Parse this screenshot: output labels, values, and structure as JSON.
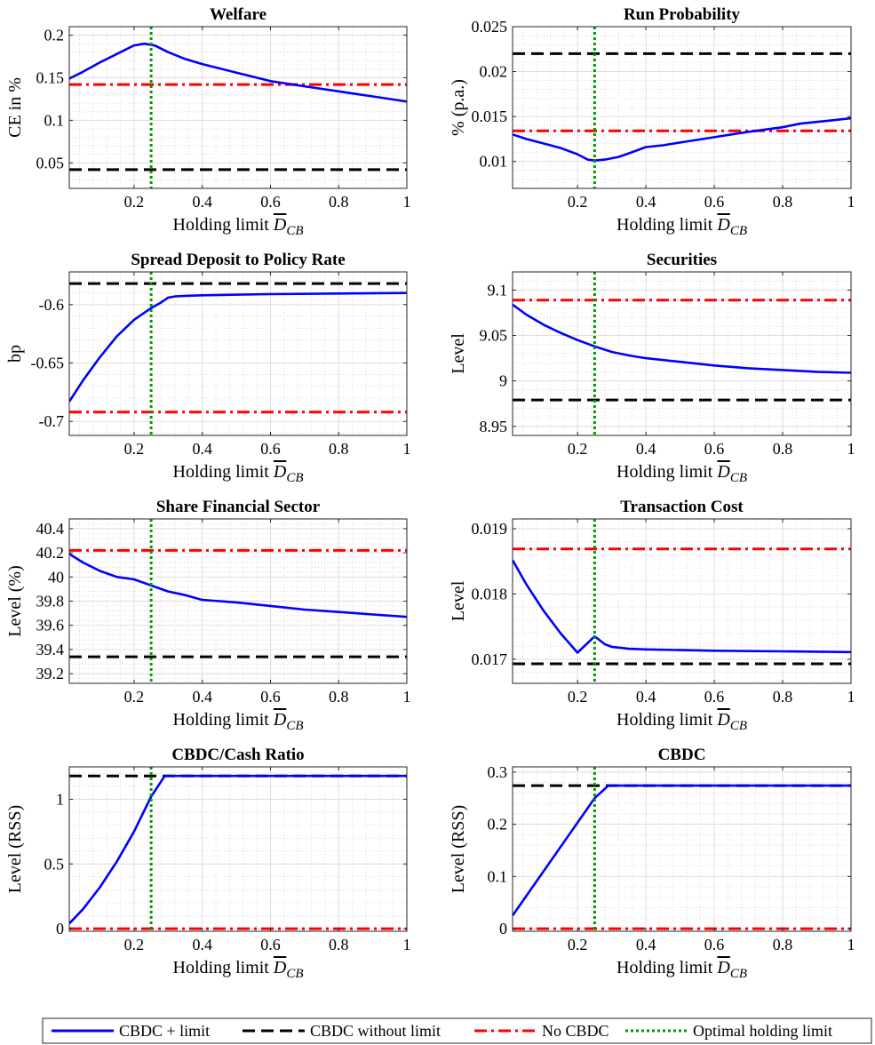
{
  "x_axis_label": {
    "prefix": "Holding limit ",
    "symbol": "D",
    "subscript": "CB"
  },
  "colors": {
    "cbdc_limit": "#0000ff",
    "cbdc_no_limit": "#000000",
    "no_cbdc": "#ff0000",
    "optimal": "#009900"
  },
  "legend": {
    "items": [
      {
        "key": "cbdc_limit",
        "label": "CBDC + limit",
        "style": "solid"
      },
      {
        "key": "cbdc_no_limit",
        "label": "CBDC without limit",
        "style": "dashed"
      },
      {
        "key": "no_cbdc",
        "label": "No CBDC",
        "style": "dashdot"
      },
      {
        "key": "optimal",
        "label": "Optimal holding limit",
        "style": "dotted"
      }
    ]
  },
  "chart_data": [
    {
      "type": "line",
      "title": "Welfare",
      "ylabel": "CE in %",
      "xlim": [
        0.01,
        1
      ],
      "ylim": [
        0.02,
        0.21
      ],
      "xticks": [
        0.2,
        0.4,
        0.6,
        0.8,
        1
      ],
      "xtick_labels": [
        "0.2",
        "0.4",
        "0.6",
        "0.8",
        "1"
      ],
      "yticks": [
        0.05,
        0.1,
        0.15,
        0.2
      ],
      "ytick_labels": [
        "0.05",
        "0.1",
        "0.15",
        "0.2"
      ],
      "series": [
        {
          "name": "CBDC + limit",
          "x": [
            0.01,
            0.05,
            0.1,
            0.15,
            0.2,
            0.23,
            0.26,
            0.3,
            0.35,
            0.4,
            0.5,
            0.6,
            0.7,
            0.8,
            0.85,
            0.9,
            0.95,
            1
          ],
          "y": [
            0.149,
            0.157,
            0.168,
            0.178,
            0.188,
            0.19,
            0.188,
            0.18,
            0.172,
            0.166,
            0.156,
            0.146,
            0.14,
            0.134,
            0.131,
            0.128,
            0.125,
            0.122
          ]
        }
      ],
      "hlines": {
        "cbdc_no_limit": 0.042,
        "no_cbdc": 0.142
      },
      "vline": 0.25
    },
    {
      "type": "line",
      "title": "Run Probability",
      "ylabel": "% (p.a.)",
      "xlim": [
        0.01,
        1
      ],
      "ylim": [
        0.007,
        0.025
      ],
      "xticks": [
        0.2,
        0.4,
        0.6,
        0.8,
        1
      ],
      "xtick_labels": [
        "0.2",
        "0.4",
        "0.6",
        "0.8",
        "1"
      ],
      "yticks": [
        0.01,
        0.015,
        0.02,
        0.025
      ],
      "ytick_labels": [
        "0.01",
        "0.015",
        "0.02",
        "0.025"
      ],
      "series": [
        {
          "name": "CBDC + limit",
          "x": [
            0.01,
            0.05,
            0.1,
            0.15,
            0.2,
            0.23,
            0.25,
            0.28,
            0.32,
            0.35,
            0.4,
            0.45,
            0.5,
            0.6,
            0.7,
            0.8,
            0.85,
            0.9,
            0.95,
            1
          ],
          "y": [
            0.013,
            0.0125,
            0.012,
            0.0115,
            0.0108,
            0.0102,
            0.0101,
            0.0102,
            0.0105,
            0.0109,
            0.0116,
            0.0118,
            0.0121,
            0.0127,
            0.0133,
            0.0138,
            0.0142,
            0.0144,
            0.0146,
            0.0148
          ]
        }
      ],
      "hlines": {
        "cbdc_no_limit": 0.022,
        "no_cbdc": 0.0134
      },
      "vline": 0.25
    },
    {
      "type": "line",
      "title": "Spread Deposit to Policy Rate",
      "ylabel": "bp",
      "xlim": [
        0.01,
        1
      ],
      "ylim": [
        -0.712,
        -0.572
      ],
      "xticks": [
        0.2,
        0.4,
        0.6,
        0.8,
        1
      ],
      "xtick_labels": [
        "0.2",
        "0.4",
        "0.6",
        "0.8",
        "1"
      ],
      "yticks": [
        -0.7,
        -0.65,
        -0.6
      ],
      "ytick_labels": [
        "-0.7",
        "-0.65",
        "-0.6"
      ],
      "series": [
        {
          "name": "CBDC + limit",
          "x": [
            0.01,
            0.05,
            0.1,
            0.15,
            0.2,
            0.25,
            0.28,
            0.3,
            0.32,
            0.35,
            0.4,
            0.6,
            0.8,
            1
          ],
          "y": [
            -0.683,
            -0.665,
            -0.645,
            -0.627,
            -0.613,
            -0.603,
            -0.598,
            -0.594,
            -0.593,
            -0.5925,
            -0.592,
            -0.591,
            -0.5905,
            -0.59
          ]
        }
      ],
      "hlines": {
        "cbdc_no_limit": -0.582,
        "no_cbdc": -0.692
      },
      "vline": 0.25
    },
    {
      "type": "line",
      "title": "Securities",
      "ylabel": "Level",
      "xlim": [
        0.01,
        1
      ],
      "ylim": [
        8.94,
        9.12
      ],
      "xticks": [
        0.2,
        0.4,
        0.6,
        0.8,
        1
      ],
      "xtick_labels": [
        "0.2",
        "0.4",
        "0.6",
        "0.8",
        "1"
      ],
      "yticks": [
        8.95,
        9,
        9.05,
        9.1
      ],
      "ytick_labels": [
        "8.95",
        "9",
        "9.05",
        "9.1"
      ],
      "series": [
        {
          "name": "CBDC + limit",
          "x": [
            0.01,
            0.05,
            0.1,
            0.15,
            0.2,
            0.25,
            0.3,
            0.35,
            0.4,
            0.5,
            0.6,
            0.7,
            0.8,
            0.9,
            1
          ],
          "y": [
            9.084,
            9.073,
            9.062,
            9.053,
            9.045,
            9.038,
            9.032,
            9.028,
            9.025,
            9.021,
            9.017,
            9.014,
            9.012,
            9.01,
            9.009
          ]
        }
      ],
      "hlines": {
        "cbdc_no_limit": 8.979,
        "no_cbdc": 9.089
      },
      "vline": 0.25
    },
    {
      "type": "line",
      "title": "Share Financial Sector",
      "ylabel": "Level (%)",
      "xlim": [
        0.01,
        1
      ],
      "ylim": [
        39.12,
        40.48
      ],
      "xticks": [
        0.2,
        0.4,
        0.6,
        0.8,
        1
      ],
      "xtick_labels": [
        "0.2",
        "0.4",
        "0.6",
        "0.8",
        "1"
      ],
      "yticks": [
        39.2,
        39.4,
        39.6,
        39.8,
        40,
        40.2,
        40.4
      ],
      "ytick_labels": [
        "39.2",
        "39.4",
        "39.6",
        "39.8",
        "40",
        "40.2",
        "40.4"
      ],
      "series": [
        {
          "name": "CBDC + limit",
          "x": [
            0.01,
            0.05,
            0.1,
            0.15,
            0.2,
            0.25,
            0.3,
            0.35,
            0.4,
            0.45,
            0.5,
            0.6,
            0.7,
            0.8,
            0.85,
            0.9,
            1
          ],
          "y": [
            40.19,
            40.12,
            40.05,
            40.0,
            39.98,
            39.93,
            39.88,
            39.85,
            39.81,
            39.8,
            39.79,
            39.76,
            39.73,
            39.71,
            39.7,
            39.69,
            39.67
          ]
        }
      ],
      "hlines": {
        "cbdc_no_limit": 39.34,
        "no_cbdc": 40.22
      },
      "vline": 0.25
    },
    {
      "type": "line",
      "title": "Transaction Cost",
      "ylabel": "Level",
      "xlim": [
        0.01,
        1
      ],
      "ylim": [
        0.01663,
        0.01915
      ],
      "xticks": [
        0.2,
        0.4,
        0.6,
        0.8,
        1
      ],
      "xtick_labels": [
        "0.2",
        "0.4",
        "0.6",
        "0.8",
        "1"
      ],
      "yticks": [
        0.017,
        0.018,
        0.019
      ],
      "ytick_labels": [
        "0.017",
        "0.018",
        "0.019"
      ],
      "series": [
        {
          "name": "CBDC + limit",
          "x": [
            0.01,
            0.05,
            0.1,
            0.15,
            0.2,
            0.25,
            0.28,
            0.3,
            0.35,
            0.4,
            0.6,
            0.8,
            1
          ],
          "y": [
            0.01852,
            0.01815,
            0.01775,
            0.0174,
            0.0171,
            0.01735,
            0.01723,
            0.01719,
            0.01716,
            0.01715,
            0.01713,
            0.01712,
            0.01711
          ]
        }
      ],
      "hlines": {
        "cbdc_no_limit": 0.01693,
        "no_cbdc": 0.01869
      },
      "vline": 0.25
    },
    {
      "type": "line",
      "title": "CBDC/Cash Ratio",
      "ylabel": "Level (RSS)",
      "xlim": [
        0.01,
        1
      ],
      "ylim": [
        -0.02,
        1.25
      ],
      "xticks": [
        0.2,
        0.4,
        0.6,
        0.8,
        1
      ],
      "xtick_labels": [
        "0.2",
        "0.4",
        "0.6",
        "0.8",
        "1"
      ],
      "yticks": [
        0,
        0.5,
        1
      ],
      "ytick_labels": [
        "0",
        "0.5",
        "1"
      ],
      "series": [
        {
          "name": "CBDC + limit",
          "x": [
            0.01,
            0.05,
            0.1,
            0.15,
            0.2,
            0.25,
            0.29,
            0.3,
            0.4,
            0.6,
            0.8,
            1
          ],
          "y": [
            0.04,
            0.15,
            0.32,
            0.52,
            0.75,
            1.02,
            1.18,
            1.18,
            1.18,
            1.18,
            1.18,
            1.18
          ]
        }
      ],
      "hlines": {
        "cbdc_no_limit": 1.18,
        "no_cbdc": 0.0
      },
      "vline": 0.25
    },
    {
      "type": "line",
      "title": "CBDC",
      "ylabel": "Level (RSS)",
      "xlim": [
        0.01,
        1
      ],
      "ylim": [
        -0.005,
        0.31
      ],
      "xticks": [
        0.2,
        0.4,
        0.6,
        0.8,
        1
      ],
      "xtick_labels": [
        "0.2",
        "0.4",
        "0.6",
        "0.8",
        "1"
      ],
      "yticks": [
        0,
        0.1,
        0.2,
        0.3
      ],
      "ytick_labels": [
        "0",
        "0.1",
        "0.2",
        "0.3"
      ],
      "series": [
        {
          "name": "CBDC + limit",
          "x": [
            0.01,
            0.25,
            0.29,
            0.4,
            0.6,
            0.8,
            1
          ],
          "y": [
            0.025,
            0.25,
            0.274,
            0.274,
            0.274,
            0.274,
            0.274
          ]
        }
      ],
      "hlines": {
        "cbdc_no_limit": 0.274,
        "no_cbdc": 0.0
      },
      "vline": 0.25
    }
  ]
}
